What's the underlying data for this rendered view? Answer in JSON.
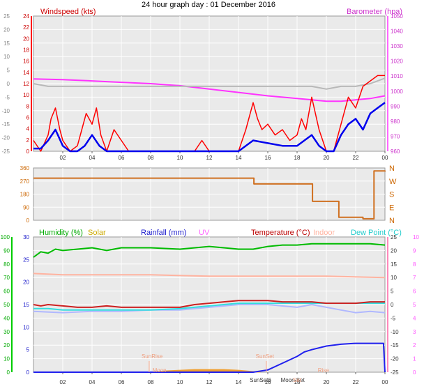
{
  "title": "24 hour graph day : 01 December 2016",
  "colors": {
    "plot_bg": "#eaeaea",
    "frame": "#9a9a9a",
    "grid": "#ffffff",
    "windspeed": "#ff0000",
    "avg_windspeed": "#0000ee",
    "barometer": "#ff33ff",
    "gray_series": "#b8b8b8",
    "direction": "#d07020",
    "humidity": "#00bb00",
    "solar": "#d8b000",
    "rainfall": "#2020ee",
    "uv": "#ff66ff",
    "temperature": "#cc2020",
    "indoor": "#ffb3a0",
    "dewpoint": "#33dddd",
    "dewpoint2": "#b0b8ff",
    "solar_fill": "#f0a030",
    "marker": "#ffaa88"
  },
  "x_ticks": [
    "02",
    "04",
    "06",
    "08",
    "10",
    "12",
    "14",
    "16",
    "18",
    "20",
    "22",
    "00"
  ],
  "chart_data": [
    {
      "type": "line",
      "panel": "wind-barometer",
      "labels": {
        "windspeed": "Windspeed (kts)",
        "barometer": "Barometer (hpa)"
      },
      "left_outer_ticks": [
        "25",
        "20",
        "15",
        "10",
        "5",
        "0",
        "-5",
        "-10",
        "-15",
        "-20",
        "-25"
      ],
      "left_outer_ylim": [
        -25,
        25
      ],
      "windspeed_ticks": [
        "24",
        "22",
        "20",
        "18",
        "16",
        "14",
        "12",
        "10",
        "8",
        "6",
        "4",
        "2",
        "0"
      ],
      "windspeed_ylim": [
        0,
        25
      ],
      "barometer_ticks": [
        "1050",
        "1040",
        "1030",
        "1020",
        "1010",
        "1000",
        "990",
        "980",
        "970",
        "960"
      ],
      "barometer_ylim": [
        955,
        1055
      ],
      "series": [
        {
          "name": "Barometer (hpa)",
          "axis": "barometer",
          "x": [
            0,
            2,
            4,
            6,
            8,
            10,
            12,
            14,
            16,
            18,
            19,
            20,
            21,
            22,
            23,
            24
          ],
          "values": [
            1008.5,
            1008,
            1007,
            1006,
            1005,
            1003.5,
            1001,
            998.5,
            996,
            994,
            993,
            992,
            992,
            993,
            994,
            996
          ]
        },
        {
          "axis": "left_outer",
          "x": [
            0,
            1,
            2,
            3,
            4,
            5,
            6,
            8,
            10,
            12,
            14,
            16,
            18,
            19,
            20,
            21,
            22,
            23,
            24
          ],
          "values": [
            0,
            -1,
            -1,
            -1,
            -1,
            -1,
            -1,
            -1,
            -1,
            -1,
            -1,
            -1,
            -1,
            -1,
            -2,
            -1,
            -1,
            0,
            2
          ]
        },
        {
          "name": "Windspeed (kts)",
          "axis": "windspeed",
          "x": [
            0,
            0.5,
            1,
            1.2,
            1.5,
            1.8,
            2,
            2.5,
            3,
            3.3,
            3.6,
            4,
            4.3,
            4.6,
            5,
            5.5,
            6,
            6.5,
            7,
            8,
            9,
            10,
            11,
            11.5,
            12,
            13,
            14,
            14.5,
            15,
            15.3,
            15.6,
            16,
            16.5,
            17,
            17.5,
            18,
            18.3,
            18.6,
            19,
            19.5,
            20,
            20.5,
            21,
            21.5,
            22,
            22.5,
            23,
            23.5,
            24
          ],
          "values": [
            2,
            0,
            3,
            6,
            8,
            4,
            2,
            0,
            1,
            4,
            7,
            5,
            8,
            3,
            0,
            4,
            2,
            0,
            0,
            0,
            0,
            0,
            0,
            2,
            0,
            0,
            0,
            4,
            9,
            6,
            4,
            5,
            3,
            4,
            2,
            3,
            6,
            4,
            10,
            4,
            0,
            0,
            5,
            10,
            8,
            12,
            13,
            14,
            14
          ]
        },
        {
          "name": "Average windspeed",
          "axis": "windspeed",
          "x": [
            0,
            0.5,
            1,
            1.5,
            2,
            2.5,
            3,
            3.5,
            4,
            4.5,
            5,
            6,
            7,
            8,
            9,
            10,
            11,
            12,
            13,
            14,
            14.5,
            15,
            16,
            17,
            18,
            18.5,
            19,
            19.5,
            20,
            20.5,
            21,
            21.5,
            22,
            22.5,
            23,
            23.5,
            24
          ],
          "values": [
            0.5,
            0.5,
            2,
            4,
            1,
            0,
            0,
            1,
            3,
            1,
            0,
            0,
            0,
            0,
            0,
            0,
            0,
            0,
            0,
            0,
            1,
            2,
            1.5,
            1,
            1,
            2,
            3,
            1,
            0,
            0,
            3,
            5,
            6,
            4,
            7,
            8,
            9
          ]
        }
      ]
    },
    {
      "type": "line",
      "panel": "wind-direction",
      "left_ticks": [
        "360",
        "270",
        "180",
        "90",
        "0"
      ],
      "ylim": [
        0,
        360
      ],
      "compass_ticks": [
        "N",
        "W",
        "S",
        "E",
        "N"
      ],
      "series": [
        {
          "name": "Wind direction",
          "x": [
            0,
            15,
            15.05,
            19,
            19.05,
            20.8,
            20.85,
            22.5,
            23.2,
            23.25,
            24
          ],
          "values": [
            290,
            290,
            250,
            250,
            130,
            130,
            20,
            10,
            10,
            340,
            335
          ]
        }
      ]
    },
    {
      "type": "line",
      "panel": "humidity-temperature",
      "labels": {
        "humidity": "Humidity (%)",
        "solar": "Solar",
        "rainfall": "Rainfall (mm)",
        "uv": "UV",
        "temperature": "Temperature (°C)",
        "indoor": "Indoor",
        "dewpoint": "Dew Point (°C)"
      },
      "humidity_ticks": [
        "100",
        "90",
        "80",
        "70",
        "60",
        "50",
        "40",
        "30",
        "20",
        "10",
        "0"
      ],
      "humidity_ylim": [
        0,
        100
      ],
      "rainfall_ticks": [
        "30",
        "25",
        "20",
        "15",
        "10",
        "5",
        "0"
      ],
      "rainfall_ylim": [
        0,
        30
      ],
      "temperature_ticks": [
        "25",
        "20",
        "15",
        "10",
        "5",
        "0",
        "-5",
        "-10",
        "-15",
        "-20",
        "-25"
      ],
      "temperature_ylim": [
        -25,
        25
      ],
      "uv_ticks": [
        "10",
        "9",
        "8",
        "7",
        "6",
        "5",
        "4",
        "3",
        "2",
        "1",
        "0"
      ],
      "uv_ylim": [
        0,
        10
      ],
      "annotations": [
        "SunRise",
        "SunSet",
        "SunSet6",
        "Moon Set",
        "Moon",
        "Rise",
        "Set"
      ],
      "series": [
        {
          "name": "Humidity (%)",
          "axis": "humidity",
          "x": [
            0,
            0.5,
            1,
            1.5,
            2,
            3,
            4,
            5,
            6,
            8,
            10,
            12,
            13,
            14,
            15,
            16,
            17,
            18,
            19,
            20,
            21,
            22,
            23,
            24
          ],
          "values": [
            85,
            89,
            88,
            91,
            90,
            91,
            92,
            90,
            92,
            92,
            91,
            93,
            92,
            91,
            91,
            93,
            94,
            94,
            95,
            95,
            95,
            95,
            95,
            94
          ]
        },
        {
          "name": "Rainfall (mm)",
          "axis": "rainfall",
          "x": [
            0,
            15,
            16,
            17,
            18,
            18.5,
            19,
            20,
            21,
            22,
            23,
            23.9,
            24
          ],
          "values": [
            0,
            0,
            0.5,
            2,
            3.5,
            4.5,
            5,
            5.8,
            6.2,
            6.4,
            6.4,
            6.4,
            0
          ]
        },
        {
          "name": "Indoor",
          "axis": "temperature",
          "x": [
            0,
            2,
            4,
            8,
            12,
            16,
            20,
            24
          ],
          "values": [
            11.5,
            11,
            11,
            11,
            10.5,
            10.5,
            10.5,
            10
          ]
        },
        {
          "name": "Temperature (°C)",
          "axis": "temperature",
          "x": [
            0,
            0.5,
            1,
            2,
            3,
            4,
            5,
            6,
            8,
            10,
            11,
            12,
            13,
            14,
            15,
            16,
            17,
            18,
            19,
            20,
            21,
            22,
            23,
            24
          ],
          "values": [
            0,
            -0.5,
            0,
            -0.5,
            -1,
            -1,
            -0.5,
            -1,
            -1,
            -1,
            0,
            0.5,
            1,
            1.5,
            1.5,
            1.5,
            1,
            1,
            1,
            0.5,
            0.5,
            0.5,
            1,
            1
          ]
        },
        {
          "name": "Dew Point (°C)",
          "axis": "temperature",
          "x": [
            0,
            1,
            2,
            3,
            4,
            5,
            6,
            8,
            10,
            11,
            12,
            13,
            14,
            15,
            16,
            17,
            18,
            19,
            20,
            21,
            22,
            23,
            24
          ],
          "values": [
            -1.5,
            -1.5,
            -2,
            -2,
            -2,
            -2,
            -2,
            -2,
            -1.5,
            -1,
            -0.5,
            0,
            0.5,
            0.5,
            0.5,
            0.5,
            0.5,
            0.5,
            0.5,
            0.5,
            0.5,
            0.5,
            0.5
          ]
        },
        {
          "axis": "temperature",
          "x": [
            0,
            2,
            4,
            6,
            8,
            10,
            12,
            14,
            16,
            18,
            19,
            20,
            21,
            22,
            23,
            24
          ],
          "values": [
            -2.5,
            -3,
            -2.5,
            -2.5,
            -2,
            -2,
            -1,
            0,
            0,
            -1,
            0,
            -1,
            -2,
            -3,
            -2.5,
            -3
          ]
        },
        {
          "name": "Solar",
          "axis": "humidity",
          "x": [
            8,
            8.5,
            9,
            10,
            11,
            12,
            13,
            14,
            15,
            15.5
          ],
          "values": [
            0,
            0.5,
            1,
            1.5,
            2,
            2,
            2,
            1.5,
            0.5,
            0
          ]
        }
      ]
    }
  ]
}
